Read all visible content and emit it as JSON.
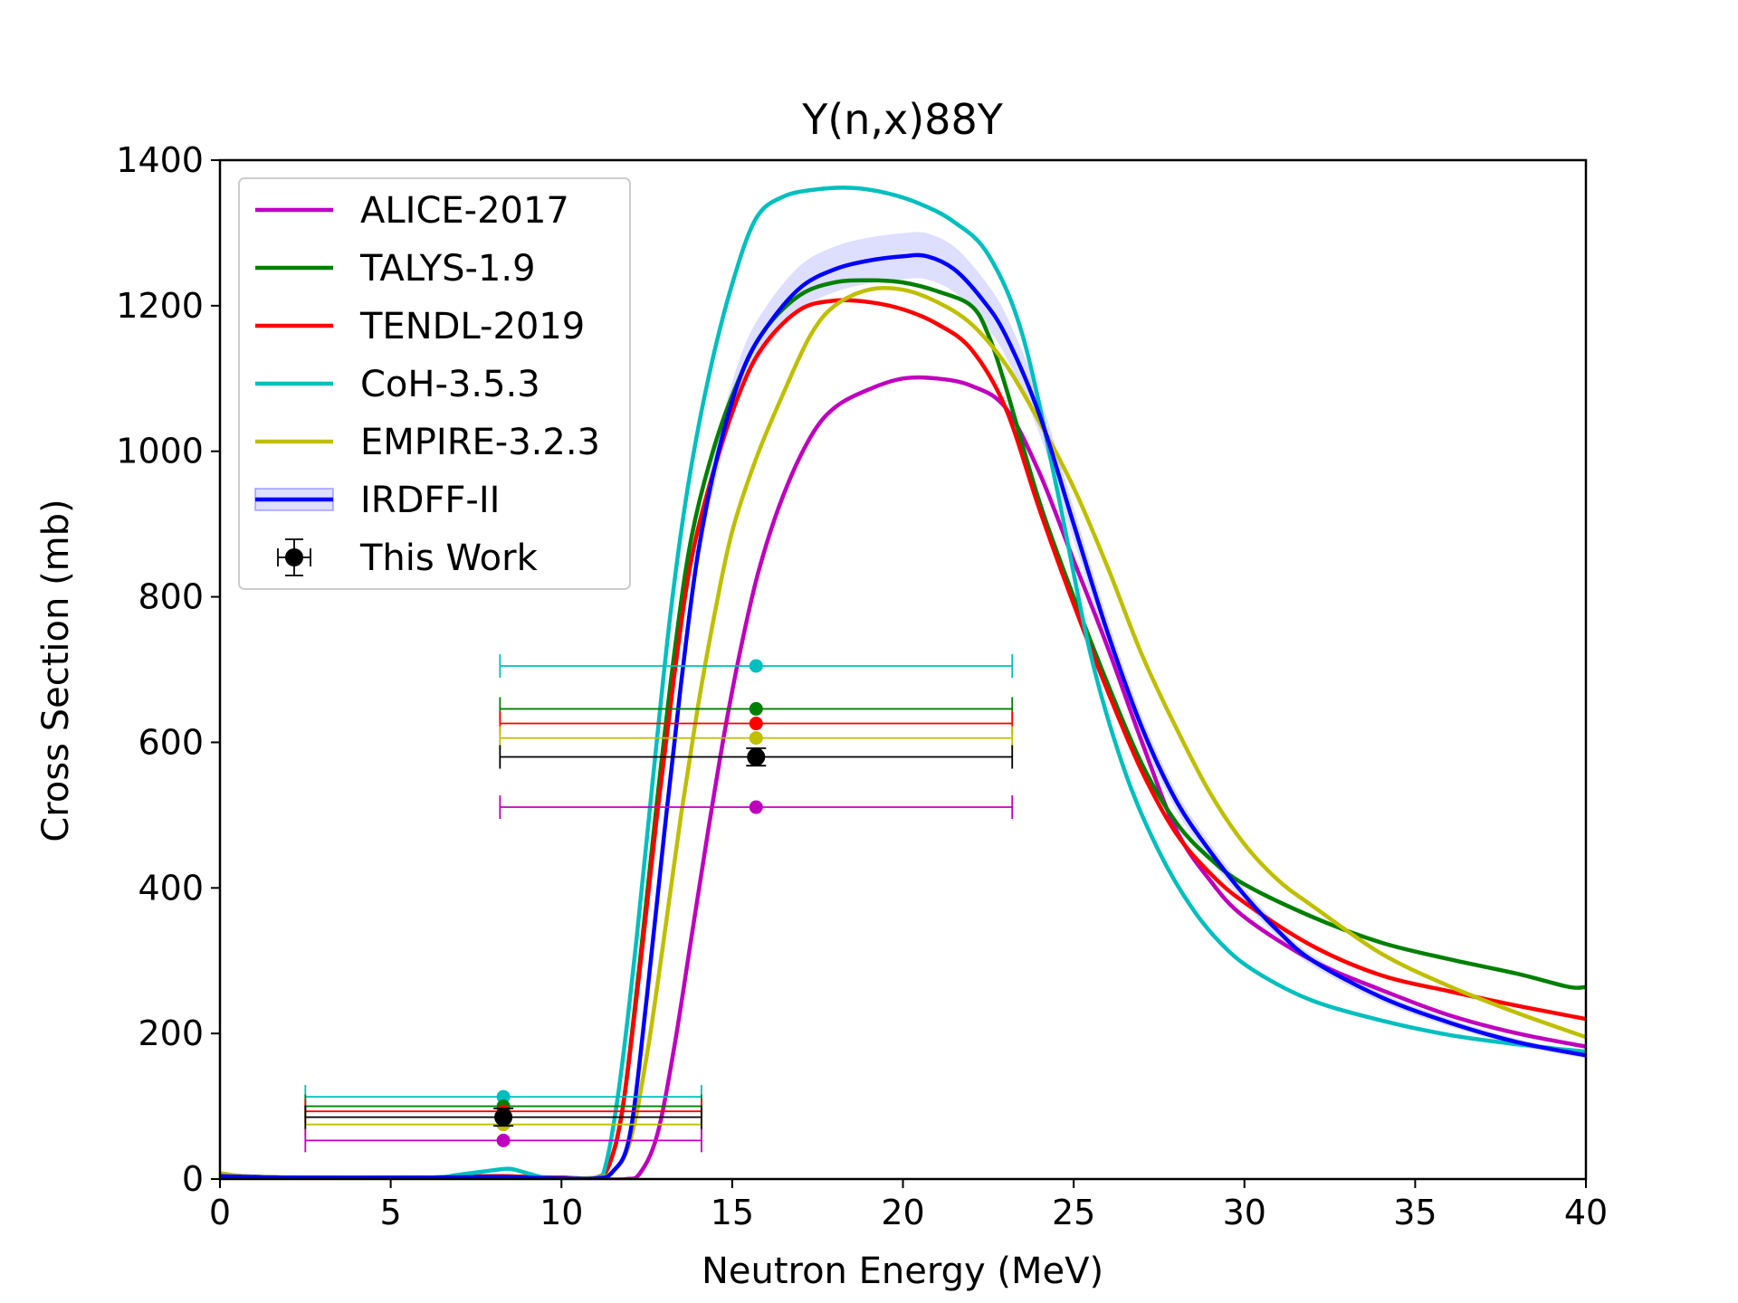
{
  "chart_data": {
    "type": "line",
    "title": "Y(n,x)88Y",
    "xlabel": "Neutron Energy (MeV)",
    "ylabel": "Cross Section (mb)",
    "xlim": [
      0,
      40
    ],
    "ylim": [
      0,
      1400
    ],
    "xticks": [
      0,
      5,
      10,
      15,
      20,
      25,
      30,
      35,
      40
    ],
    "yticks": [
      0,
      200,
      400,
      600,
      800,
      1000,
      1200,
      1400
    ],
    "grid": false,
    "legend_position": "upper-left",
    "series": [
      {
        "name": "ALICE-2017",
        "color": "#bf00bf",
        "points": [
          [
            0,
            6
          ],
          [
            2,
            2
          ],
          [
            6,
            2
          ],
          [
            8,
            3
          ],
          [
            9,
            2
          ],
          [
            10,
            1
          ],
          [
            11,
            0
          ],
          [
            11.9,
            0
          ],
          [
            12.3,
            8
          ],
          [
            12.8,
            60
          ],
          [
            13.3,
            180
          ],
          [
            13.8,
            330
          ],
          [
            14.3,
            480
          ],
          [
            14.8,
            620
          ],
          [
            15.3,
            740
          ],
          [
            15.8,
            840
          ],
          [
            16.5,
            940
          ],
          [
            17.3,
            1020
          ],
          [
            18,
            1060
          ],
          [
            19,
            1085
          ],
          [
            20,
            1100
          ],
          [
            21,
            1100
          ],
          [
            22,
            1090
          ],
          [
            23,
            1060
          ],
          [
            24,
            970
          ],
          [
            25,
            850
          ],
          [
            26,
            730
          ],
          [
            27,
            600
          ],
          [
            28,
            480
          ],
          [
            29,
            410
          ],
          [
            30,
            360
          ],
          [
            32,
            300
          ],
          [
            34,
            260
          ],
          [
            36,
            225
          ],
          [
            38,
            200
          ],
          [
            40,
            182
          ]
        ]
      },
      {
        "name": "TALYS-1.9",
        "color": "#008000",
        "points": [
          [
            0,
            5
          ],
          [
            2,
            2
          ],
          [
            6,
            2
          ],
          [
            8,
            4
          ],
          [
            9,
            3
          ],
          [
            10,
            2
          ],
          [
            11,
            2
          ],
          [
            11.4,
            20
          ],
          [
            11.8,
            100
          ],
          [
            12.3,
            300
          ],
          [
            12.8,
            520
          ],
          [
            13.3,
            720
          ],
          [
            13.8,
            880
          ],
          [
            14.5,
            1010
          ],
          [
            15.3,
            1110
          ],
          [
            16,
            1170
          ],
          [
            17,
            1215
          ],
          [
            18,
            1232
          ],
          [
            19,
            1235
          ],
          [
            20,
            1232
          ],
          [
            21,
            1220
          ],
          [
            22,
            1200
          ],
          [
            22.5,
            1160
          ],
          [
            23,
            1090
          ],
          [
            24,
            930
          ],
          [
            25,
            800
          ],
          [
            26,
            680
          ],
          [
            27,
            570
          ],
          [
            28,
            490
          ],
          [
            29,
            440
          ],
          [
            30,
            405
          ],
          [
            32,
            360
          ],
          [
            34,
            325
          ],
          [
            36,
            302
          ],
          [
            38,
            282
          ],
          [
            39.5,
            264
          ],
          [
            40,
            264
          ]
        ]
      },
      {
        "name": "TENDL-2019",
        "color": "#ff0000",
        "points": [
          [
            0,
            5
          ],
          [
            2,
            2
          ],
          [
            6,
            2
          ],
          [
            8,
            4
          ],
          [
            9,
            3
          ],
          [
            10,
            2
          ],
          [
            11,
            2
          ],
          [
            11.4,
            20
          ],
          [
            11.8,
            100
          ],
          [
            12.3,
            290
          ],
          [
            12.8,
            500
          ],
          [
            13.3,
            690
          ],
          [
            13.8,
            850
          ],
          [
            14.5,
            980
          ],
          [
            15.3,
            1090
          ],
          [
            16,
            1150
          ],
          [
            17,
            1195
          ],
          [
            18,
            1207
          ],
          [
            19,
            1205
          ],
          [
            20,
            1195
          ],
          [
            21,
            1175
          ],
          [
            22,
            1140
          ],
          [
            23,
            1060
          ],
          [
            24,
            920
          ],
          [
            25,
            790
          ],
          [
            26,
            670
          ],
          [
            27,
            560
          ],
          [
            28,
            475
          ],
          [
            29,
            420
          ],
          [
            30,
            380
          ],
          [
            32,
            320
          ],
          [
            34,
            280
          ],
          [
            36,
            258
          ],
          [
            38,
            238
          ],
          [
            40,
            220
          ]
        ]
      },
      {
        "name": "CoH-3.5.3",
        "color": "#00bfbf",
        "points": [
          [
            0,
            5
          ],
          [
            2,
            2
          ],
          [
            6,
            2
          ],
          [
            7,
            6
          ],
          [
            8,
            12
          ],
          [
            8.5,
            14
          ],
          [
            9,
            8
          ],
          [
            9.5,
            2
          ],
          [
            10,
            1
          ],
          [
            11,
            2
          ],
          [
            11.3,
            20
          ],
          [
            11.7,
            130
          ],
          [
            12.2,
            330
          ],
          [
            12.7,
            560
          ],
          [
            13.2,
            780
          ],
          [
            13.7,
            950
          ],
          [
            14.3,
            1100
          ],
          [
            15,
            1230
          ],
          [
            15.7,
            1320
          ],
          [
            16.5,
            1350
          ],
          [
            17.5,
            1360
          ],
          [
            18.5,
            1362
          ],
          [
            19.5,
            1355
          ],
          [
            20.5,
            1340
          ],
          [
            21.5,
            1315
          ],
          [
            22.5,
            1270
          ],
          [
            23.5,
            1160
          ],
          [
            24.5,
            950
          ],
          [
            25.5,
            720
          ],
          [
            26.5,
            560
          ],
          [
            27.5,
            450
          ],
          [
            28.5,
            370
          ],
          [
            29.5,
            315
          ],
          [
            30.5,
            280
          ],
          [
            32,
            245
          ],
          [
            34,
            218
          ],
          [
            36,
            198
          ],
          [
            38,
            185
          ],
          [
            40,
            175
          ]
        ]
      },
      {
        "name": "EMPIRE-3.2.3",
        "color": "#bfbf00",
        "points": [
          [
            0,
            8
          ],
          [
            1,
            3
          ],
          [
            3,
            2
          ],
          [
            6,
            2
          ],
          [
            8,
            3
          ],
          [
            9,
            2
          ],
          [
            10,
            1
          ],
          [
            11,
            2
          ],
          [
            11.5,
            10
          ],
          [
            12,
            50
          ],
          [
            12.5,
            170
          ],
          [
            13,
            330
          ],
          [
            13.5,
            500
          ],
          [
            14,
            650
          ],
          [
            14.5,
            780
          ],
          [
            15,
            890
          ],
          [
            15.7,
            990
          ],
          [
            16.5,
            1080
          ],
          [
            17.3,
            1160
          ],
          [
            18,
            1200
          ],
          [
            19,
            1222
          ],
          [
            20,
            1222
          ],
          [
            21,
            1205
          ],
          [
            22,
            1175
          ],
          [
            23,
            1120
          ],
          [
            24,
            1040
          ],
          [
            25,
            950
          ],
          [
            26,
            840
          ],
          [
            27,
            720
          ],
          [
            28,
            620
          ],
          [
            29,
            530
          ],
          [
            30,
            460
          ],
          [
            31,
            410
          ],
          [
            32,
            375
          ],
          [
            34,
            310
          ],
          [
            36,
            265
          ],
          [
            38,
            228
          ],
          [
            40,
            195
          ]
        ]
      },
      {
        "name": "IRDFF-II",
        "color": "#0000ff",
        "band": 0.025,
        "points": [
          [
            0,
            4
          ],
          [
            2,
            2
          ],
          [
            6,
            2
          ],
          [
            8,
            3
          ],
          [
            9,
            2
          ],
          [
            10,
            1
          ],
          [
            11,
            1
          ],
          [
            11.5,
            10
          ],
          [
            12,
            60
          ],
          [
            12.5,
            250
          ],
          [
            13,
            470
          ],
          [
            13.5,
            680
          ],
          [
            14,
            860
          ],
          [
            14.6,
            1000
          ],
          [
            15.3,
            1110
          ],
          [
            16,
            1170
          ],
          [
            17,
            1225
          ],
          [
            18,
            1250
          ],
          [
            19,
            1262
          ],
          [
            20,
            1268
          ],
          [
            20.7,
            1268
          ],
          [
            21.5,
            1250
          ],
          [
            22.3,
            1210
          ],
          [
            23,
            1160
          ],
          [
            24,
            1050
          ],
          [
            25,
            900
          ],
          [
            26,
            750
          ],
          [
            27,
            620
          ],
          [
            28,
            520
          ],
          [
            29,
            450
          ],
          [
            30,
            390
          ],
          [
            31,
            340
          ],
          [
            32,
            300
          ],
          [
            34,
            250
          ],
          [
            36,
            215
          ],
          [
            38,
            188
          ],
          [
            40,
            170
          ]
        ]
      }
    ],
    "error_points": [
      {
        "color": "#00bfbf",
        "points": [
          {
            "x": 8.3,
            "xerr": 5.8,
            "y": 113
          },
          {
            "x": 15.7,
            "xerr": 7.5,
            "y": 705
          }
        ]
      },
      {
        "color": "#008000",
        "points": [
          {
            "x": 8.3,
            "xerr": 5.8,
            "y": 100
          },
          {
            "x": 15.7,
            "xerr": 7.5,
            "y": 646
          }
        ]
      },
      {
        "color": "#ff0000",
        "points": [
          {
            "x": 8.3,
            "xerr": 5.8,
            "y": 93
          },
          {
            "x": 15.7,
            "xerr": 7.5,
            "y": 626
          }
        ]
      },
      {
        "color": "#bfbf00",
        "points": [
          {
            "x": 8.3,
            "xerr": 5.8,
            "y": 75
          },
          {
            "x": 15.7,
            "xerr": 7.5,
            "y": 606
          }
        ]
      },
      {
        "color": "#bf00bf",
        "points": [
          {
            "x": 8.3,
            "xerr": 5.8,
            "y": 53
          },
          {
            "x": 15.7,
            "xerr": 7.5,
            "y": 511
          }
        ]
      },
      {
        "name": "This Work",
        "color": "#000000",
        "big": true,
        "points": [
          {
            "x": 8.3,
            "xerr": 5.8,
            "y": 85,
            "yerr": 12
          },
          {
            "x": 15.7,
            "xerr": 7.5,
            "y": 580,
            "yerr": 12
          }
        ]
      }
    ]
  }
}
